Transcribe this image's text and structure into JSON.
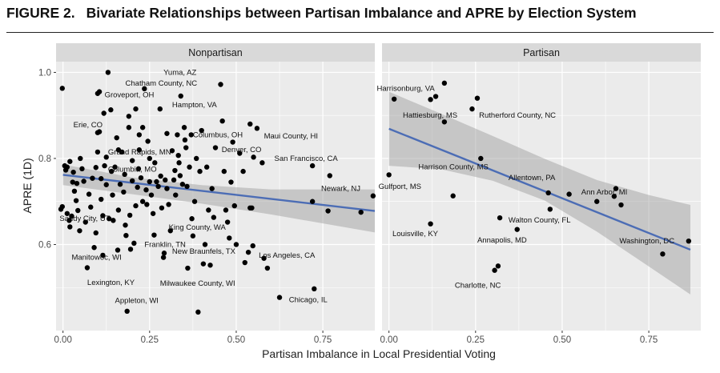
{
  "figure": {
    "number": "FIGURE 2.",
    "title": "Bivariate Relationships between Partisan Imbalance and APRE by Election System"
  },
  "colors": {
    "panel_bg": "#ebebeb",
    "strip_bg": "#d9d9d9",
    "gridline": "#ffffff",
    "point": "#000000",
    "fit_line": "#4c6db5",
    "ci_band": "#999999",
    "axis_text": "#4d4d4d"
  },
  "chart_data": {
    "type": "scatter",
    "xlabel": "Partisan Imbalance in Local Presidential Voting",
    "ylabel": "APRE (1D)",
    "xlim": [
      -0.02,
      0.9
    ],
    "ylim": [
      0.4,
      1.025
    ],
    "x_ticks": [
      0.0,
      0.25,
      0.5,
      0.75
    ],
    "x_tick_labels": [
      "0.00",
      "0.25",
      "0.50",
      "0.75"
    ],
    "y_ticks": [
      0.6,
      0.8,
      1.0
    ],
    "y_tick_labels": [
      "0.6",
      "0.8",
      "1.0"
    ],
    "grid": true,
    "panels": [
      {
        "name": "Nonpartisan",
        "fit": {
          "x": [
            0.0,
            0.9
          ],
          "y": [
            0.762,
            0.678
          ]
        },
        "ci": {
          "x": [
            0.0,
            0.2,
            0.4,
            0.6,
            0.9
          ],
          "upper": [
            0.786,
            0.756,
            0.738,
            0.728,
            0.728
          ],
          "lower": [
            0.738,
            0.717,
            0.695,
            0.67,
            0.628
          ]
        },
        "points": [
          {
            "x": -0.002,
            "y": 0.963
          },
          {
            "x": 0.005,
            "y": 0.783
          },
          {
            "x": 0.008,
            "y": 0.773
          },
          {
            "x": 0.012,
            "y": 0.78
          },
          {
            "x": 0.02,
            "y": 0.793
          },
          {
            "x": 0.028,
            "y": 0.745
          },
          {
            "x": 0.03,
            "y": 0.768
          },
          {
            "x": 0.033,
            "y": 0.724
          },
          {
            "x": 0.038,
            "y": 0.702
          },
          {
            "x": 0.04,
            "y": 0.742
          },
          {
            "x": -0.006,
            "y": 0.682
          },
          {
            "x": -0.002,
            "y": 0.688
          },
          {
            "x": 0.012,
            "y": 0.672
          },
          {
            "x": 0.018,
            "y": 0.656
          },
          {
            "x": 0.02,
            "y": 0.641
          },
          {
            "x": 0.025,
            "y": 0.666
          },
          {
            "x": 0.043,
            "y": 0.679
          },
          {
            "x": 0.048,
            "y": 0.632
          },
          {
            "x": 0.05,
            "y": 0.8
          },
          {
            "x": 0.055,
            "y": 0.776
          },
          {
            "x": 0.06,
            "y": 0.747
          },
          {
            "x": 0.065,
            "y": 0.652
          },
          {
            "x": 0.07,
            "y": 0.546
          },
          {
            "x": 0.075,
            "y": 0.717
          },
          {
            "x": 0.08,
            "y": 0.687
          },
          {
            "x": 0.085,
            "y": 0.754
          },
          {
            "x": 0.09,
            "y": 0.593
          },
          {
            "x": 0.095,
            "y": 0.779
          },
          {
            "x": 0.095,
            "y": 0.627
          },
          {
            "x": 0.1,
            "y": 0.86
          },
          {
            "x": 0.1,
            "y": 0.815
          },
          {
            "x": 0.1,
            "y": 0.951
          },
          {
            "x": 0.105,
            "y": 0.955
          },
          {
            "x": 0.105,
            "y": 0.862
          },
          {
            "x": 0.11,
            "y": 0.753
          },
          {
            "x": 0.11,
            "y": 0.705
          },
          {
            "x": 0.115,
            "y": 0.667
          },
          {
            "x": 0.115,
            "y": 0.575
          },
          {
            "x": 0.118,
            "y": 0.905
          },
          {
            "x": 0.12,
            "y": 0.783
          },
          {
            "x": 0.125,
            "y": 0.803
          },
          {
            "x": 0.125,
            "y": 0.739
          },
          {
            "x": 0.13,
            "y": 1.0
          },
          {
            "x": 0.133,
            "y": 0.66
          },
          {
            "x": 0.138,
            "y": 0.913
          },
          {
            "x": 0.14,
            "y": 0.77
          },
          {
            "x": 0.143,
            "y": 0.715
          },
          {
            "x": 0.145,
            "y": 0.656
          },
          {
            "x": 0.15,
            "y": 0.78
          },
          {
            "x": 0.155,
            "y": 0.848
          },
          {
            "x": 0.158,
            "y": 0.587
          },
          {
            "x": 0.16,
            "y": 0.82
          },
          {
            "x": 0.16,
            "y": 0.68
          },
          {
            "x": 0.165,
            "y": 0.74
          },
          {
            "x": 0.17,
            "y": 0.815
          },
          {
            "x": 0.175,
            "y": 0.722
          },
          {
            "x": 0.178,
            "y": 0.763
          },
          {
            "x": 0.18,
            "y": 0.645
          },
          {
            "x": 0.182,
            "y": 0.621
          },
          {
            "x": 0.185,
            "y": 0.445
          },
          {
            "x": 0.19,
            "y": 0.898
          },
          {
            "x": 0.19,
            "y": 0.872
          },
          {
            "x": 0.193,
            "y": 0.668
          },
          {
            "x": 0.195,
            "y": 0.589
          },
          {
            "x": 0.2,
            "y": 0.795
          },
          {
            "x": 0.2,
            "y": 0.748
          },
          {
            "x": 0.205,
            "y": 0.603
          },
          {
            "x": 0.21,
            "y": 0.915
          },
          {
            "x": 0.21,
            "y": 0.69
          },
          {
            "x": 0.215,
            "y": 0.733
          },
          {
            "x": 0.218,
            "y": 0.776
          },
          {
            "x": 0.22,
            "y": 0.82
          },
          {
            "x": 0.22,
            "y": 0.855
          },
          {
            "x": 0.225,
            "y": 0.755
          },
          {
            "x": 0.23,
            "y": 0.872
          },
          {
            "x": 0.23,
            "y": 0.7
          },
          {
            "x": 0.235,
            "y": 0.962
          },
          {
            "x": 0.24,
            "y": 0.727
          },
          {
            "x": 0.242,
            "y": 0.693
          },
          {
            "x": 0.245,
            "y": 0.84
          },
          {
            "x": 0.25,
            "y": 0.8
          },
          {
            "x": 0.25,
            "y": 0.746
          },
          {
            "x": 0.255,
            "y": 0.715
          },
          {
            "x": 0.26,
            "y": 0.672
          },
          {
            "x": 0.263,
            "y": 0.622
          },
          {
            "x": 0.265,
            "y": 0.79
          },
          {
            "x": 0.27,
            "y": 0.746
          },
          {
            "x": 0.275,
            "y": 0.735
          },
          {
            "x": 0.28,
            "y": 0.915
          },
          {
            "x": 0.282,
            "y": 0.759
          },
          {
            "x": 0.285,
            "y": 0.685
          },
          {
            "x": 0.29,
            "y": 0.57
          },
          {
            "x": 0.292,
            "y": 0.58
          },
          {
            "x": 0.295,
            "y": 0.75
          },
          {
            "x": 0.3,
            "y": 0.858
          },
          {
            "x": 0.3,
            "y": 0.73
          },
          {
            "x": 0.305,
            "y": 0.693
          },
          {
            "x": 0.31,
            "y": 0.632
          },
          {
            "x": 0.315,
            "y": 0.818
          },
          {
            "x": 0.32,
            "y": 0.75
          },
          {
            "x": 0.323,
            "y": 0.772
          },
          {
            "x": 0.325,
            "y": 0.715
          },
          {
            "x": 0.33,
            "y": 0.855
          },
          {
            "x": 0.333,
            "y": 0.807
          },
          {
            "x": 0.335,
            "y": 0.79
          },
          {
            "x": 0.338,
            "y": 0.76
          },
          {
            "x": 0.34,
            "y": 0.945
          },
          {
            "x": 0.345,
            "y": 0.74
          },
          {
            "x": 0.35,
            "y": 0.872
          },
          {
            "x": 0.352,
            "y": 0.843
          },
          {
            "x": 0.355,
            "y": 0.825
          },
          {
            "x": 0.358,
            "y": 0.735
          },
          {
            "x": 0.36,
            "y": 0.545
          },
          {
            "x": 0.365,
            "y": 0.78
          },
          {
            "x": 0.37,
            "y": 0.855
          },
          {
            "x": 0.372,
            "y": 0.66
          },
          {
            "x": 0.375,
            "y": 0.62
          },
          {
            "x": 0.38,
            "y": 0.7
          },
          {
            "x": 0.385,
            "y": 0.8
          },
          {
            "x": 0.39,
            "y": 0.443
          },
          {
            "x": 0.395,
            "y": 0.77
          },
          {
            "x": 0.4,
            "y": 0.865
          },
          {
            "x": 0.405,
            "y": 0.555
          },
          {
            "x": 0.41,
            "y": 0.6
          },
          {
            "x": 0.415,
            "y": 0.78
          },
          {
            "x": 0.42,
            "y": 0.68
          },
          {
            "x": 0.425,
            "y": 0.552
          },
          {
            "x": 0.43,
            "y": 0.73
          },
          {
            "x": 0.435,
            "y": 0.663
          },
          {
            "x": 0.44,
            "y": 0.825
          },
          {
            "x": 0.455,
            "y": 0.972
          },
          {
            "x": 0.46,
            "y": 0.887
          },
          {
            "x": 0.465,
            "y": 0.77
          },
          {
            "x": 0.47,
            "y": 0.68
          },
          {
            "x": 0.475,
            "y": 0.652
          },
          {
            "x": 0.48,
            "y": 0.615
          },
          {
            "x": 0.485,
            "y": 0.745
          },
          {
            "x": 0.49,
            "y": 0.838
          },
          {
            "x": 0.495,
            "y": 0.69
          },
          {
            "x": 0.5,
            "y": 0.6
          },
          {
            "x": 0.51,
            "y": 0.812
          },
          {
            "x": 0.52,
            "y": 0.77
          },
          {
            "x": 0.525,
            "y": 0.558
          },
          {
            "x": 0.535,
            "y": 0.582
          },
          {
            "x": 0.54,
            "y": 0.88
          },
          {
            "x": 0.54,
            "y": 0.685
          },
          {
            "x": 0.545,
            "y": 0.685
          },
          {
            "x": 0.548,
            "y": 0.597
          },
          {
            "x": 0.55,
            "y": 0.803
          },
          {
            "x": 0.56,
            "y": 0.87
          },
          {
            "x": 0.575,
            "y": 0.79
          },
          {
            "x": 0.58,
            "y": 0.568
          },
          {
            "x": 0.59,
            "y": 0.545
          },
          {
            "x": 0.625,
            "y": 0.477
          },
          {
            "x": 0.72,
            "y": 0.783
          },
          {
            "x": 0.72,
            "y": 0.7
          },
          {
            "x": 0.725,
            "y": 0.497
          },
          {
            "x": 0.765,
            "y": 0.678
          },
          {
            "x": 0.77,
            "y": 0.76
          },
          {
            "x": 0.86,
            "y": 0.675
          },
          {
            "x": 0.895,
            "y": 0.713
          }
        ],
        "annotations": [
          {
            "label": "Yuma, AZ",
            "x": 0.29,
            "y": 1.0
          },
          {
            "label": "Chatham County, NC",
            "x": 0.18,
            "y": 0.975
          },
          {
            "label": "Groveport, OH",
            "x": 0.12,
            "y": 0.948
          },
          {
            "label": "Hampton, VA",
            "x": 0.315,
            "y": 0.925
          },
          {
            "label": "Erie, CO",
            "x": 0.03,
            "y": 0.878
          },
          {
            "label": "Columbus, OH",
            "x": 0.375,
            "y": 0.855
          },
          {
            "label": "Maui County, HI",
            "x": 0.58,
            "y": 0.852
          },
          {
            "label": "Grand Rapids, MN",
            "x": 0.13,
            "y": 0.815
          },
          {
            "label": "Denver, CO",
            "x": 0.458,
            "y": 0.82
          },
          {
            "label": "San Francisco, CA",
            "x": 0.61,
            "y": 0.8
          },
          {
            "label": "Columbia, MO",
            "x": 0.13,
            "y": 0.775
          },
          {
            "label": "Newark, NJ",
            "x": 0.745,
            "y": 0.73
          },
          {
            "label": "Sandy City, UT",
            "x": -0.01,
            "y": 0.66
          },
          {
            "label": "King County, WA",
            "x": 0.305,
            "y": 0.64
          },
          {
            "label": "Franklin, TN",
            "x": 0.235,
            "y": 0.6
          },
          {
            "label": "New Braunfels, TX",
            "x": 0.315,
            "y": 0.584
          },
          {
            "label": "Los Angeles, CA",
            "x": 0.565,
            "y": 0.575
          },
          {
            "label": "Manitowoc, WI",
            "x": 0.025,
            "y": 0.57
          },
          {
            "label": "Milwaukee County, WI",
            "x": 0.28,
            "y": 0.51
          },
          {
            "label": "Lexington, KY",
            "x": 0.07,
            "y": 0.512
          },
          {
            "label": "Chicago, IL",
            "x": 0.652,
            "y": 0.472
          },
          {
            "label": "Appleton, WI",
            "x": 0.15,
            "y": 0.47
          }
        ]
      },
      {
        "name": "Partisan",
        "fit": {
          "x": [
            0.0,
            0.87
          ],
          "y": [
            0.869,
            0.588
          ]
        },
        "ci": {
          "x": [
            0.0,
            0.15,
            0.3,
            0.45,
            0.6,
            0.75,
            0.87
          ],
          "upper": [
            0.955,
            0.904,
            0.852,
            0.799,
            0.75,
            0.715,
            0.692
          ],
          "lower": [
            0.783,
            0.775,
            0.748,
            0.702,
            0.63,
            0.549,
            0.484
          ]
        },
        "points": [
          {
            "x": 0.015,
            "y": 0.938
          },
          {
            "x": 0.0,
            "y": 0.762
          },
          {
            "x": 0.12,
            "y": 0.648
          },
          {
            "x": 0.12,
            "y": 0.937
          },
          {
            "x": 0.135,
            "y": 0.944
          },
          {
            "x": 0.16,
            "y": 0.975
          },
          {
            "x": 0.16,
            "y": 0.885
          },
          {
            "x": 0.185,
            "y": 0.713
          },
          {
            "x": 0.24,
            "y": 0.915
          },
          {
            "x": 0.255,
            "y": 0.94
          },
          {
            "x": 0.265,
            "y": 0.8
          },
          {
            "x": 0.305,
            "y": 0.54
          },
          {
            "x": 0.315,
            "y": 0.55
          },
          {
            "x": 0.32,
            "y": 0.662
          },
          {
            "x": 0.37,
            "y": 0.635
          },
          {
            "x": 0.46,
            "y": 0.72
          },
          {
            "x": 0.465,
            "y": 0.682
          },
          {
            "x": 0.52,
            "y": 0.717
          },
          {
            "x": 0.6,
            "y": 0.7
          },
          {
            "x": 0.65,
            "y": 0.712
          },
          {
            "x": 0.655,
            "y": 0.73
          },
          {
            "x": 0.67,
            "y": 0.692
          },
          {
            "x": 0.79,
            "y": 0.578
          },
          {
            "x": 0.865,
            "y": 0.608
          }
        ],
        "annotations": [
          {
            "label": "Harrisonburg, VA",
            "x": -0.035,
            "y": 0.963
          },
          {
            "label": "Hattiesburg, MS",
            "x": 0.04,
            "y": 0.9
          },
          {
            "label": "Rutherford County, NC",
            "x": 0.26,
            "y": 0.9
          },
          {
            "label": "Harrison County, MS",
            "x": 0.085,
            "y": 0.78
          },
          {
            "label": "Gulfport, MS",
            "x": -0.03,
            "y": 0.735
          },
          {
            "label": "Allentown, PA",
            "x": 0.345,
            "y": 0.755
          },
          {
            "label": "Ann Arbor, MI",
            "x": 0.555,
            "y": 0.722
          },
          {
            "label": "Walton County, FL",
            "x": 0.345,
            "y": 0.657
          },
          {
            "label": "Louisville, KY",
            "x": 0.01,
            "y": 0.625
          },
          {
            "label": "Annapolis, MD",
            "x": 0.255,
            "y": 0.61
          },
          {
            "label": "Washington, DC",
            "x": 0.665,
            "y": 0.608
          },
          {
            "label": "Charlotte, NC",
            "x": 0.19,
            "y": 0.505
          }
        ]
      }
    ]
  }
}
